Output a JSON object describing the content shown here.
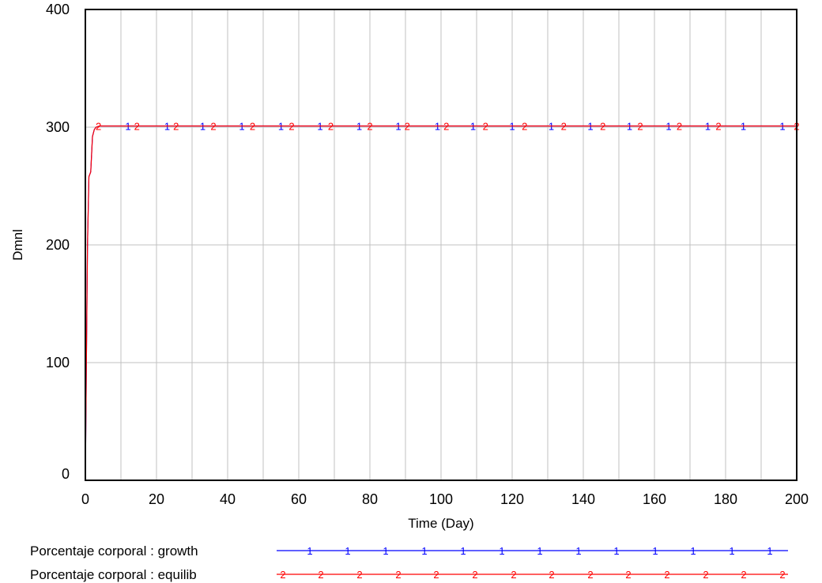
{
  "chart_data": {
    "type": "line",
    "title": "",
    "xlabel": "Time (Day)",
    "ylabel": "Dmnl",
    "xlim": [
      0,
      200
    ],
    "ylim": [
      0,
      400
    ],
    "x_ticks": [
      0,
      20,
      40,
      60,
      80,
      100,
      120,
      140,
      160,
      180,
      200
    ],
    "y_ticks": [
      0,
      100,
      200,
      300,
      400
    ],
    "grid": true,
    "legend_position": "bottom",
    "series": [
      {
        "name": "Porcentaje corporal : growth",
        "marker": "1",
        "color": "#0000ff",
        "x": [
          0,
          0.3,
          0.6,
          1,
          1.5,
          2,
          2.5,
          3,
          4,
          200
        ],
        "y": [
          0,
          100,
          200,
          258,
          262,
          292,
          298,
          300,
          301,
          301
        ]
      },
      {
        "name": "Porcentaje corporal : equilib",
        "marker": "2",
        "color": "#ff0000",
        "x": [
          0,
          0.3,
          0.6,
          1,
          1.5,
          2,
          2.5,
          3,
          4,
          200
        ],
        "y": [
          0,
          100,
          200,
          258,
          262,
          292,
          298,
          300,
          301,
          301
        ]
      }
    ]
  }
}
